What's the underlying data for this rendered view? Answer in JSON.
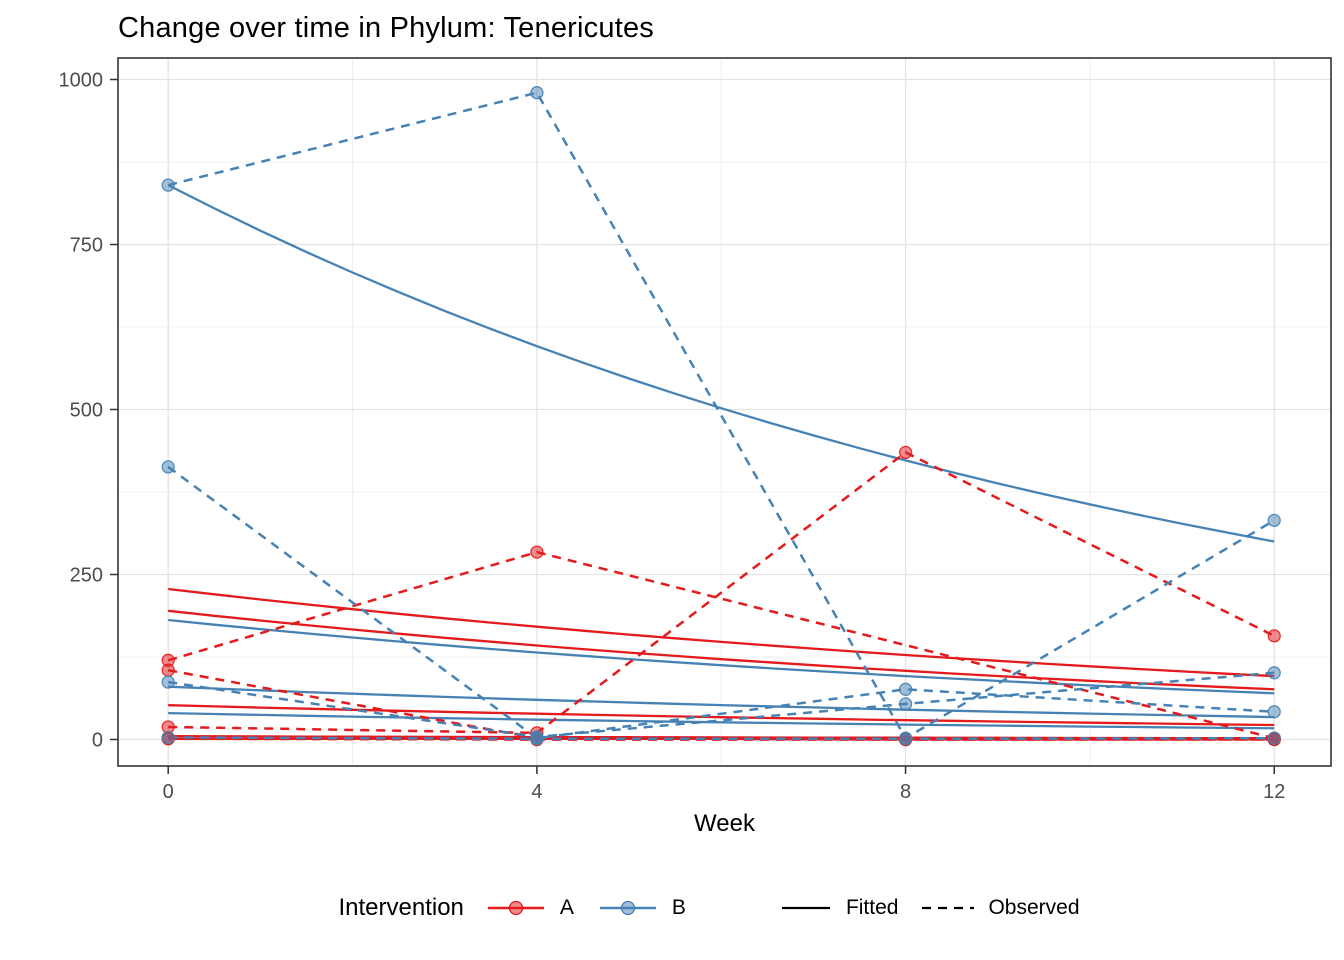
{
  "title": "Change over time in Phylum: Tenericutes",
  "chart_data": {
    "type": "line",
    "title": "Change over time in Phylum: Tenericutes",
    "xlabel": "Week",
    "ylabel": "",
    "x_ticks": [
      0,
      4,
      8,
      12
    ],
    "x_minor": [
      2,
      6,
      10
    ],
    "y_ticks": [
      0,
      250,
      500,
      750,
      1000
    ],
    "y_minor": [
      125,
      375,
      625,
      875
    ],
    "xlim": [
      -0.55,
      12.6
    ],
    "ylim": [
      -40,
      1032
    ],
    "grid": true,
    "legend_position": "bottom",
    "groups": {
      "A": {
        "label": "A",
        "color": "#E41A1C"
      },
      "B": {
        "label": "B",
        "color": "#4682B4"
      }
    },
    "linetypes": {
      "fitted": "solid",
      "observed": "dashed"
    },
    "series": [
      {
        "subject": "A1",
        "intervention": "A",
        "observed": {
          "weeks": [
            0,
            4,
            12
          ],
          "values": [
            120,
            284,
            2
          ]
        },
        "fitted": {
          "start": 228,
          "end": 96
        }
      },
      {
        "subject": "A2",
        "intervention": "A",
        "observed": {
          "weeks": [
            0,
            4,
            8,
            12
          ],
          "values": [
            105,
            2,
            0,
            0
          ]
        },
        "fitted": {
          "start": 195,
          "end": 76
        }
      },
      {
        "subject": "A3",
        "intervention": "A",
        "observed": {
          "weeks": [
            0,
            4,
            8,
            12
          ],
          "values": [
            19,
            10,
            435,
            157
          ]
        },
        "fitted": {
          "start": 52,
          "end": 22
        }
      },
      {
        "subject": "A4",
        "intervention": "A",
        "observed": {
          "weeks": [
            0,
            4,
            8,
            12
          ],
          "values": [
            2,
            0,
            0,
            1
          ]
        },
        "fitted": {
          "start": 5,
          "end": 2
        }
      },
      {
        "subject": "A5",
        "intervention": "A",
        "observed": {
          "weeks": [
            0,
            4,
            8,
            12
          ],
          "values": [
            1,
            0,
            0,
            0
          ]
        },
        "fitted": {
          "start": 1,
          "end": 1
        }
      },
      {
        "subject": "B1",
        "intervention": "B",
        "observed": {
          "weeks": [
            0,
            4,
            8,
            12
          ],
          "values": [
            840,
            980,
            2,
            332
          ]
        },
        "fitted": {
          "start": 840,
          "end": 300
        }
      },
      {
        "subject": "B2",
        "intervention": "B",
        "observed": {
          "weeks": [
            0,
            4,
            8,
            12
          ],
          "values": [
            413,
            2,
            76,
            42
          ]
        },
        "fitted": {
          "start": 181,
          "end": 70
        }
      },
      {
        "subject": "B3",
        "intervention": "B",
        "observed": {
          "weeks": [
            0,
            4,
            8,
            12
          ],
          "values": [
            87,
            4,
            54,
            101
          ]
        },
        "fitted": {
          "start": 80,
          "end": 34
        }
      },
      {
        "subject": "B4",
        "intervention": "B",
        "observed": {
          "weeks": [
            0,
            4,
            8,
            12
          ],
          "values": [
            3,
            1,
            1,
            2
          ]
        },
        "fitted": {
          "start": 40,
          "end": 17
        }
      }
    ]
  },
  "legend": {
    "title": "Intervention",
    "item_a": "A",
    "item_b": "B",
    "fitted_label": "Fitted",
    "observed_label": "Observed"
  },
  "colors": {
    "red": "#E41A1C",
    "blue": "#4682B4",
    "grid_major": "#e3e3e3",
    "grid_minor": "#f0f0f0",
    "panel_border": "#333333",
    "tick": "#333333",
    "tick_text": "#4d4d4d"
  }
}
